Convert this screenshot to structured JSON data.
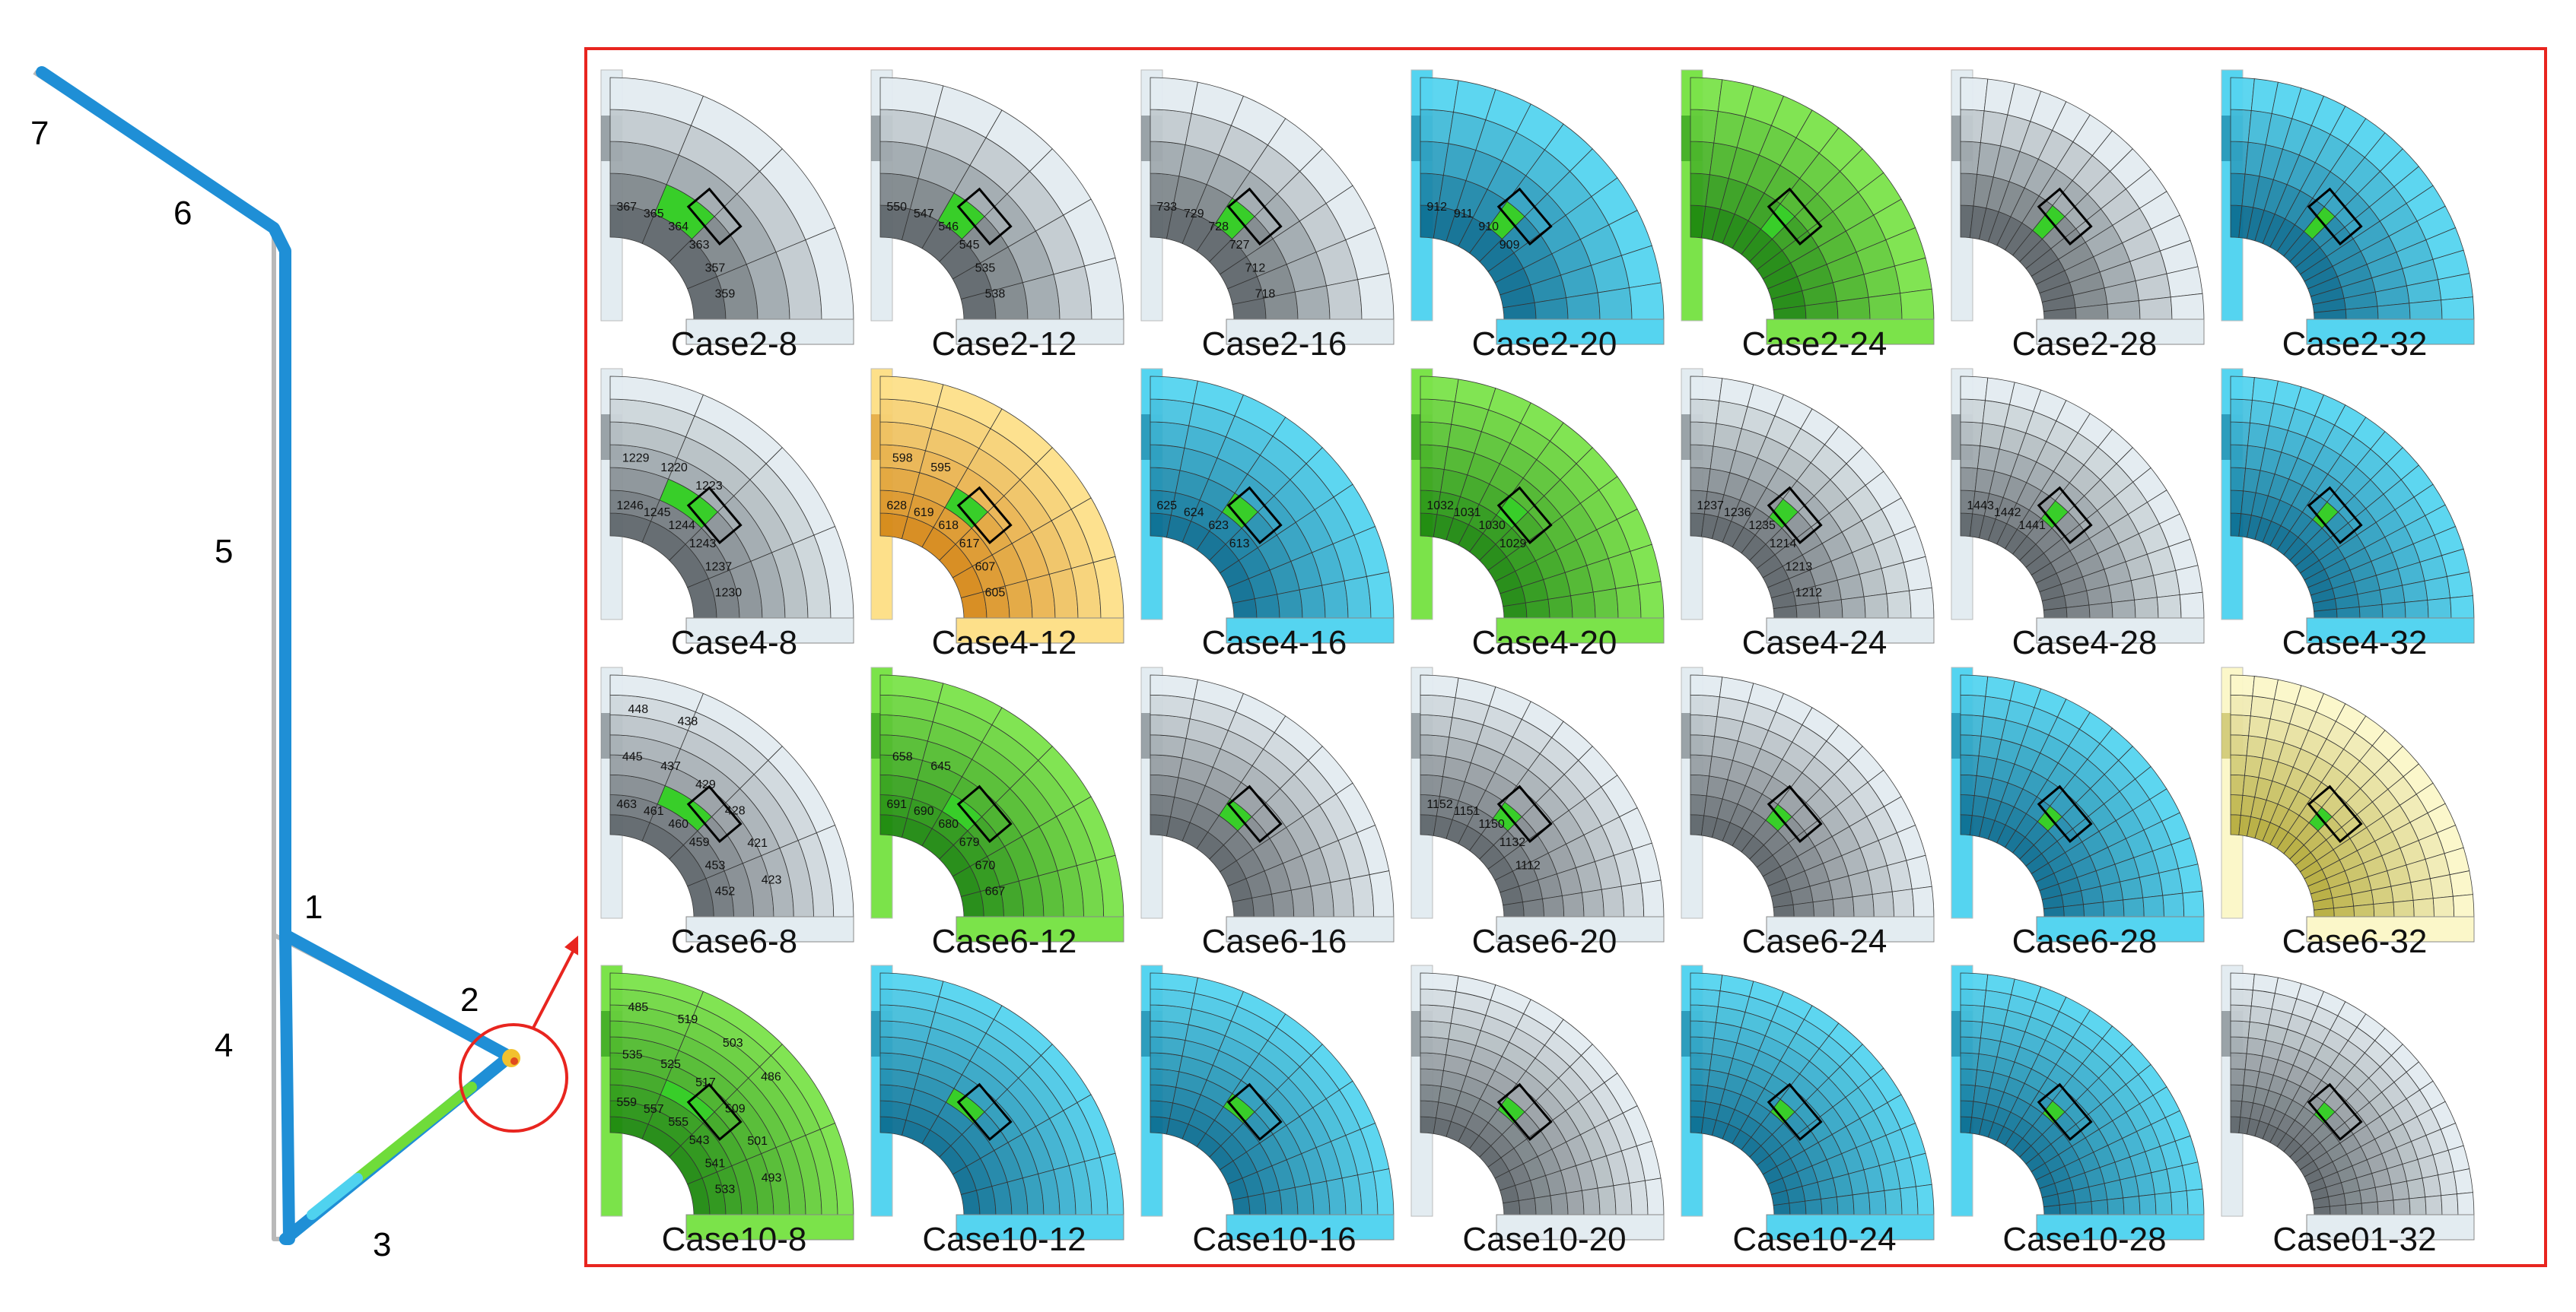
{
  "pipe": {
    "segment_labels": [
      "7",
      "6",
      "5",
      "1",
      "2",
      "4",
      "3"
    ]
  },
  "grid": {
    "rows": [
      {
        "cases": [
          {
            "label": "Case2-8",
            "scheme": "gray",
            "sample_numbers": [
              "367",
              "365",
              "364",
              "363",
              "357",
              "359"
            ]
          },
          {
            "label": "Case2-12",
            "scheme": "gray",
            "sample_numbers": [
              "550",
              "547",
              "546",
              "545",
              "535",
              "538"
            ]
          },
          {
            "label": "Case2-16",
            "scheme": "gray",
            "sample_numbers": [
              "733",
              "729",
              "728",
              "727",
              "712",
              "718"
            ]
          },
          {
            "label": "Case2-20",
            "scheme": "cyan",
            "sample_numbers": [
              "912",
              "911",
              "910",
              "909"
            ]
          },
          {
            "label": "Case2-24",
            "scheme": "green",
            "sample_numbers": []
          },
          {
            "label": "Case2-28",
            "scheme": "gray",
            "sample_numbers": []
          },
          {
            "label": "Case2-32",
            "scheme": "cyan",
            "sample_numbers": []
          }
        ]
      },
      {
        "cases": [
          {
            "label": "Case4-8",
            "scheme": "gray",
            "sample_numbers": [
              "1246",
              "1245",
              "1244",
              "1243",
              "1237",
              "1230",
              "1229",
              "1220",
              "1223"
            ]
          },
          {
            "label": "Case4-12",
            "scheme": "orange",
            "sample_numbers": [
              "628",
              "619",
              "618",
              "617",
              "607",
              "605",
              "598",
              "595"
            ]
          },
          {
            "label": "Case4-16",
            "scheme": "cyan",
            "sample_numbers": [
              "625",
              "624",
              "623",
              "613"
            ]
          },
          {
            "label": "Case4-20",
            "scheme": "green",
            "sample_numbers": [
              "1032",
              "1031",
              "1030",
              "1029"
            ]
          },
          {
            "label": "Case4-24",
            "scheme": "gray",
            "sample_numbers": [
              "1237",
              "1236",
              "1235",
              "1214",
              "1213",
              "1212"
            ]
          },
          {
            "label": "Case4-28",
            "scheme": "gray",
            "sample_numbers": [
              "1443",
              "1442",
              "1441"
            ]
          },
          {
            "label": "Case4-32",
            "scheme": "cyan",
            "sample_numbers": []
          }
        ]
      },
      {
        "cases": [
          {
            "label": "Case6-8",
            "scheme": "gray",
            "sample_numbers": [
              "463",
              "461",
              "460",
              "459",
              "453",
              "452",
              "445",
              "437",
              "429",
              "428",
              "421",
              "423",
              "448",
              "438"
            ]
          },
          {
            "label": "Case6-12",
            "scheme": "green",
            "sample_numbers": [
              "691",
              "690",
              "680",
              "679",
              "670",
              "667",
              "658",
              "645"
            ]
          },
          {
            "label": "Case6-16",
            "scheme": "gray",
            "sample_numbers": []
          },
          {
            "label": "Case6-20",
            "scheme": "gray",
            "sample_numbers": [
              "1152",
              "1151",
              "1150",
              "1132",
              "1112"
            ]
          },
          {
            "label": "Case6-24",
            "scheme": "gray",
            "sample_numbers": []
          },
          {
            "label": "Case6-28",
            "scheme": "cyan",
            "sample_numbers": []
          },
          {
            "label": "Case6-32",
            "scheme": "yellow",
            "sample_numbers": []
          }
        ]
      },
      {
        "cases": [
          {
            "label": "Case10-8",
            "scheme": "green",
            "sample_numbers": [
              "559",
              "557",
              "555",
              "543",
              "541",
              "533",
              "535",
              "525",
              "517",
              "509",
              "501",
              "493",
              "485",
              "519",
              "503",
              "486"
            ]
          },
          {
            "label": "Case10-12",
            "scheme": "cyan",
            "sample_numbers": []
          },
          {
            "label": "Case10-16",
            "scheme": "cyan",
            "sample_numbers": []
          },
          {
            "label": "Case10-20",
            "scheme": "gray",
            "sample_numbers": []
          },
          {
            "label": "Case10-24",
            "scheme": "cyan",
            "sample_numbers": []
          },
          {
            "label": "Case10-28",
            "scheme": "cyan",
            "sample_numbers": []
          },
          {
            "label": "Case01-32",
            "scheme": "gray",
            "sample_numbers": []
          }
        ]
      }
    ]
  },
  "colors": {
    "frame_red": "#e8251f",
    "pipe_blue": "#1f8fd6",
    "highlight_green": "#2ecc1e",
    "gray": {
      "base": "#8c9499",
      "light": "#e3ecf1",
      "dark": "#5f676c"
    },
    "cyan": {
      "base": "#1a9ec9",
      "light": "#55d4f0",
      "dark": "#0d6f93"
    },
    "green": {
      "base": "#3fbf1f",
      "light": "#7be34a",
      "dark": "#1f8a10"
    },
    "orange": {
      "base": "#f5b33a",
      "light": "#fde08a",
      "dark": "#d68a1a"
    },
    "yellow": {
      "base": "#e9e38c",
      "light": "#fbf7c9",
      "dark": "#b7ad3f"
    }
  }
}
